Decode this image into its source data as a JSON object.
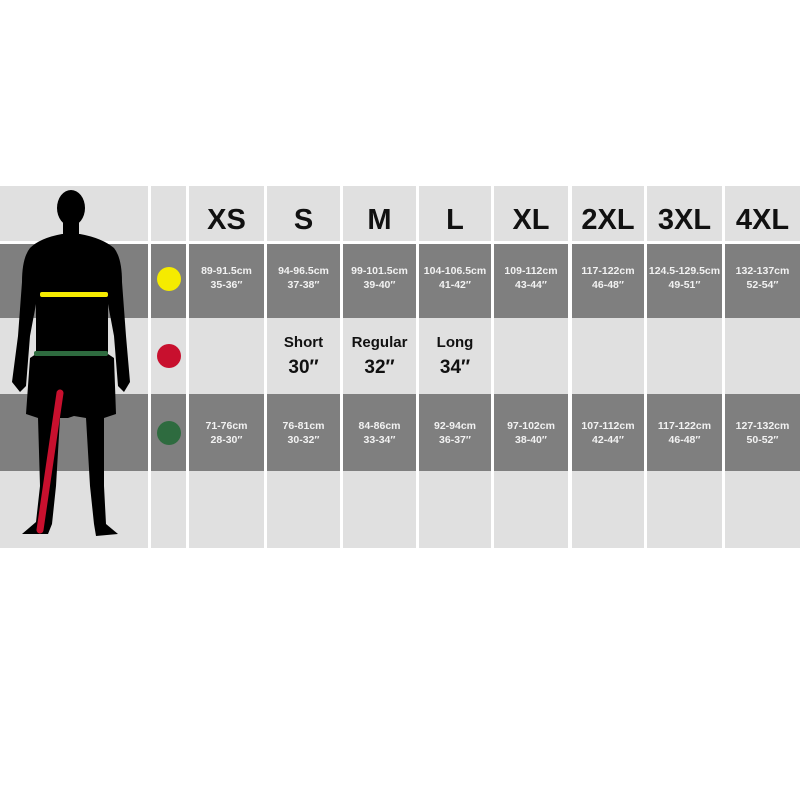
{
  "sizes": [
    "XS",
    "S",
    "M",
    "L",
    "XL",
    "2XL",
    "3XL",
    "4XL"
  ],
  "rows": [
    {
      "marker_color": "#f5eb00",
      "marker_name": "chest-marker",
      "cells": [
        [
          "89-91.5cm",
          "35-36″"
        ],
        [
          "94-96.5cm",
          "37-38″"
        ],
        [
          "99-101.5cm",
          "39-40″"
        ],
        [
          "104-106.5cm",
          "41-42″"
        ],
        [
          "109-112cm",
          "43-44″"
        ],
        [
          "117-122cm",
          "46-48″"
        ],
        [
          "124.5-129.5cm",
          "49-51″"
        ],
        [
          "132-137cm",
          "52-54″"
        ]
      ]
    },
    {
      "marker_color": "#c8102e",
      "marker_name": "inside-leg-marker",
      "cells": [
        [],
        [
          "Short",
          "30″"
        ],
        [
          "Regular",
          "32″"
        ],
        [
          "Long",
          "34″"
        ],
        [],
        [],
        [],
        []
      ]
    },
    {
      "marker_color": "#2e6b3f",
      "marker_name": "waist-marker",
      "cells": [
        [
          "71-76cm",
          "28-30″"
        ],
        [
          "76-81cm",
          "30-32″"
        ],
        [
          "84-86cm",
          "33-34″"
        ],
        [
          "92-94cm",
          "36-37″"
        ],
        [
          "97-102cm",
          "38-40″"
        ],
        [
          "107-112cm",
          "42-44″"
        ],
        [
          "117-122cm",
          "46-48″"
        ],
        [
          "127-132cm",
          "50-52″"
        ]
      ]
    },
    {
      "marker_color": "",
      "marker_name": "empty-row",
      "cells": [
        [],
        [],
        [],
        [],
        [],
        [],
        [],
        []
      ]
    }
  ],
  "colors": {
    "light_cell": "#e0e0e0",
    "dark_cell": "#7f7f7f",
    "chest_band": "#f5eb00",
    "waist_band": "#2e6b3f",
    "inseam_band": "#c8102e"
  },
  "icons": {
    "figure": "human-silhouette-icon"
  }
}
